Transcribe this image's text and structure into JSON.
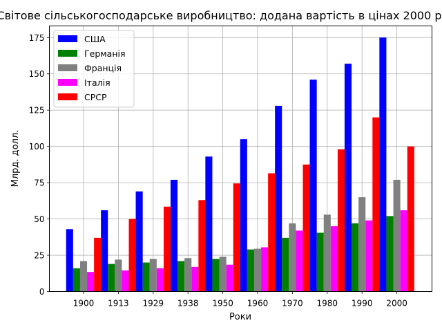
{
  "chart_data": {
    "type": "bar",
    "title": "Світове  сільськогосподарське  виробництво:   додана вартість в цінах 2000 р.",
    "xlabel": "Роки",
    "ylabel": "Млрд. долл.",
    "categories": [
      "1900",
      "1913",
      "1929",
      "1938",
      "1950",
      "1960",
      "1970",
      "1980",
      "1990",
      "2000"
    ],
    "ylim": [
      0,
      183
    ],
    "yticks": [
      0,
      25,
      50,
      75,
      100,
      125,
      150,
      175
    ],
    "grid": true,
    "legend_position": "top-left",
    "series": [
      {
        "name": "США",
        "color": "#0000ff",
        "values": [
          43,
          56,
          69,
          77,
          93,
          105,
          128,
          146,
          157,
          175
        ]
      },
      {
        "name": "Германія",
        "color": "#008000",
        "values": [
          16,
          19,
          20,
          21,
          22.5,
          29,
          37,
          40.5,
          47,
          52
        ]
      },
      {
        "name": "Франція",
        "color": "#808080",
        "values": [
          21,
          22,
          22.5,
          23,
          24,
          29.5,
          47,
          53,
          65,
          77
        ]
      },
      {
        "name": "Італія",
        "color": "#ff00ff",
        "values": [
          13.5,
          14.5,
          16,
          17,
          18.5,
          30.5,
          42,
          45,
          49,
          56
        ]
      },
      {
        "name": "СРСР",
        "color": "#ff0000",
        "values": [
          37,
          50,
          58.5,
          63,
          74.5,
          81.5,
          87.5,
          98,
          120,
          100
        ]
      }
    ]
  }
}
